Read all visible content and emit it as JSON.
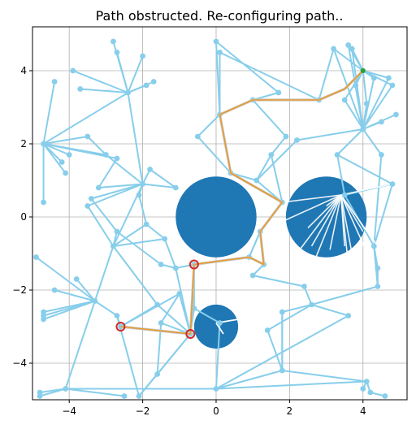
{
  "chart_data": {
    "type": "scatter",
    "title": "Path obstructed. Re-configuring path..",
    "xlabel": "",
    "ylabel": "",
    "xlim": [
      -5,
      5.2
    ],
    "ylim": [
      -5,
      5.2
    ],
    "xticks": [
      -4,
      -2,
      0,
      2,
      4
    ],
    "yticks": [
      -4,
      -2,
      0,
      2,
      4
    ],
    "grid": true,
    "colors": {
      "graph": "#87ceeb",
      "obstacle": "#1f77b4",
      "path": "#e69b2d",
      "path_edge": "#c8c8c8",
      "sample_marker": "#d62728",
      "start": "#2ca02c",
      "rays": "#ffffff"
    },
    "obstacles": [
      {
        "center": [
          0,
          0
        ],
        "radius": 1.1
      },
      {
        "center": [
          3,
          0
        ],
        "radius": 1.1
      },
      {
        "center": [
          0,
          -3
        ],
        "radius": 0.6
      }
    ],
    "nodes": [
      [
        -2.8,
        4.8
      ],
      [
        -2.7,
        4.5
      ],
      [
        -2.0,
        4.4
      ],
      [
        -3.9,
        4.0
      ],
      [
        -4.4,
        3.7
      ],
      [
        -3.7,
        3.5
      ],
      [
        -1.9,
        3.6
      ],
      [
        -1.7,
        3.7
      ],
      [
        -2.4,
        3.4
      ],
      [
        -4.7,
        2.0
      ],
      [
        -3.5,
        2.2
      ],
      [
        -3.0,
        1.7
      ],
      [
        -4.0,
        1.7
      ],
      [
        -2.7,
        1.6
      ],
      [
        -4.2,
        1.5
      ],
      [
        -4.1,
        1.2
      ],
      [
        -4.7,
        0.4
      ],
      [
        -3.2,
        0.8
      ],
      [
        -1.8,
        1.3
      ],
      [
        -2.0,
        0.9
      ],
      [
        -1.1,
        0.8
      ],
      [
        -3.4,
        0.5
      ],
      [
        -3.5,
        0.3
      ],
      [
        -2.1,
        0.6
      ],
      [
        -2.7,
        -0.4
      ],
      [
        -1.9,
        -0.2
      ],
      [
        -1.4,
        -0.6
      ],
      [
        -2.8,
        -0.8
      ],
      [
        -1.5,
        -1.3
      ],
      [
        -3.8,
        -1.7
      ],
      [
        -1.1,
        -1.4
      ],
      [
        -0.6,
        -1.3
      ],
      [
        -4.9,
        -1.1
      ],
      [
        -4.4,
        -2.0
      ],
      [
        -3.3,
        -2.3
      ],
      [
        -1.6,
        -2.4
      ],
      [
        -1.0,
        -2.1
      ],
      [
        -4.7,
        -2.6
      ],
      [
        -4.7,
        -2.7
      ],
      [
        -4.7,
        -2.8
      ],
      [
        -2.7,
        -2.7
      ],
      [
        -2.6,
        -3.0
      ],
      [
        -1.5,
        -2.9
      ],
      [
        -0.7,
        -3.2
      ],
      [
        -1.6,
        -4.3
      ],
      [
        -2.1,
        -4.9
      ],
      [
        -4.8,
        -4.8
      ],
      [
        -4.8,
        -4.9
      ],
      [
        -4.1,
        -4.7
      ],
      [
        -2.5,
        -4.9
      ],
      [
        0.0,
        4.8
      ],
      [
        0.1,
        4.5
      ],
      [
        0.1,
        2.8
      ],
      [
        -0.5,
        2.2
      ],
      [
        1.7,
        3.4
      ],
      [
        1.0,
        3.2
      ],
      [
        1.9,
        2.2
      ],
      [
        1.1,
        1.0
      ],
      [
        0.4,
        1.2
      ],
      [
        1.5,
        1.7
      ],
      [
        2.2,
        2.1
      ],
      [
        2.8,
        3.2
      ],
      [
        3.2,
        4.6
      ],
      [
        3.6,
        4.7
      ],
      [
        3.7,
        4.6
      ],
      [
        4.0,
        4.0
      ],
      [
        4.3,
        3.8
      ],
      [
        4.7,
        3.8
      ],
      [
        4.8,
        3.6
      ],
      [
        4.9,
        2.8
      ],
      [
        4.1,
        3.1
      ],
      [
        3.8,
        3.6
      ],
      [
        3.5,
        3.2
      ],
      [
        4.5,
        2.6
      ],
      [
        4.0,
        2.4
      ],
      [
        3.3,
        1.7
      ],
      [
        4.5,
        1.7
      ],
      [
        3.5,
        0.6
      ],
      [
        4.8,
        0.9
      ],
      [
        1.8,
        0.4
      ],
      [
        1.2,
        -0.4
      ],
      [
        1.3,
        -1.3
      ],
      [
        0.9,
        -1.1
      ],
      [
        1.0,
        -1.6
      ],
      [
        2.4,
        -1.9
      ],
      [
        4.3,
        -0.8
      ],
      [
        4.4,
        -1.4
      ],
      [
        4.4,
        -1.9
      ],
      [
        2.6,
        -2.4
      ],
      [
        1.8,
        -2.6
      ],
      [
        3.6,
        -2.7
      ],
      [
        1.4,
        -3.1
      ],
      [
        1.8,
        -4.2
      ],
      [
        0.0,
        -4.7
      ],
      [
        4.1,
        -4.5
      ],
      [
        4.0,
        -4.7
      ],
      [
        4.2,
        -4.8
      ],
      [
        4.6,
        -4.9
      ],
      [
        0.1,
        -2.9
      ],
      [
        -0.6,
        -2.5
      ]
    ],
    "edges": [
      [
        0,
        8
      ],
      [
        1,
        8
      ],
      [
        2,
        8
      ],
      [
        3,
        8
      ],
      [
        4,
        9
      ],
      [
        5,
        8
      ],
      [
        6,
        8
      ],
      [
        7,
        8
      ],
      [
        8,
        9
      ],
      [
        10,
        9
      ],
      [
        11,
        9
      ],
      [
        12,
        9
      ],
      [
        13,
        9
      ],
      [
        14,
        9
      ],
      [
        15,
        9
      ],
      [
        16,
        9
      ],
      [
        8,
        19
      ],
      [
        11,
        19
      ],
      [
        17,
        19
      ],
      [
        18,
        19
      ],
      [
        20,
        19
      ],
      [
        21,
        19
      ],
      [
        22,
        19
      ],
      [
        23,
        19
      ],
      [
        19,
        27
      ],
      [
        24,
        27
      ],
      [
        25,
        27
      ],
      [
        26,
        27
      ],
      [
        22,
        27
      ],
      [
        27,
        34
      ],
      [
        29,
        34
      ],
      [
        32,
        34
      ],
      [
        33,
        34
      ],
      [
        34,
        40
      ],
      [
        34,
        37
      ],
      [
        34,
        38
      ],
      [
        34,
        39
      ],
      [
        40,
        41
      ],
      [
        41,
        43
      ],
      [
        42,
        43
      ],
      [
        35,
        43
      ],
      [
        36,
        43
      ],
      [
        30,
        43
      ],
      [
        43,
        44
      ],
      [
        43,
        45
      ],
      [
        34,
        48
      ],
      [
        46,
        48
      ],
      [
        47,
        48
      ],
      [
        48,
        93
      ],
      [
        49,
        48
      ],
      [
        31,
        43
      ],
      [
        43,
        99
      ],
      [
        99,
        98
      ],
      [
        98,
        93
      ],
      [
        93,
        92
      ],
      [
        92,
        91
      ],
      [
        92,
        89
      ],
      [
        89,
        88
      ],
      [
        88,
        90
      ],
      [
        88,
        87
      ],
      [
        87,
        86
      ],
      [
        86,
        85
      ],
      [
        88,
        84
      ],
      [
        84,
        83
      ],
      [
        83,
        81
      ],
      [
        81,
        82
      ],
      [
        82,
        80
      ],
      [
        80,
        79
      ],
      [
        79,
        57
      ],
      [
        57,
        58
      ],
      [
        58,
        52
      ],
      [
        52,
        55
      ],
      [
        55,
        61
      ],
      [
        61,
        62
      ],
      [
        62,
        65
      ],
      [
        65,
        66
      ],
      [
        65,
        67
      ],
      [
        65,
        68
      ],
      [
        65,
        63
      ],
      [
        65,
        64
      ],
      [
        65,
        70
      ],
      [
        65,
        71
      ],
      [
        65,
        72
      ],
      [
        62,
        74
      ],
      [
        63,
        74
      ],
      [
        64,
        74
      ],
      [
        66,
        74
      ],
      [
        67,
        74
      ],
      [
        68,
        74
      ],
      [
        69,
        74
      ],
      [
        70,
        74
      ],
      [
        71,
        74
      ],
      [
        72,
        74
      ],
      [
        73,
        74
      ],
      [
        74,
        75
      ],
      [
        74,
        76
      ],
      [
        74,
        60
      ],
      [
        75,
        77
      ],
      [
        76,
        85
      ],
      [
        77,
        78
      ],
      [
        77,
        85
      ],
      [
        55,
        54
      ],
      [
        54,
        50
      ],
      [
        50,
        52
      ],
      [
        51,
        52
      ],
      [
        53,
        52
      ],
      [
        51,
        61
      ],
      [
        55,
        56
      ],
      [
        56,
        59
      ],
      [
        59,
        57
      ],
      [
        53,
        58
      ],
      [
        92,
        94
      ],
      [
        94,
        95
      ],
      [
        94,
        96
      ],
      [
        96,
        97
      ],
      [
        93,
        94
      ],
      [
        89,
        92
      ],
      [
        25,
        26
      ],
      [
        26,
        30
      ],
      [
        28,
        30
      ],
      [
        30,
        31
      ],
      [
        18,
        20
      ],
      [
        24,
        28
      ],
      [
        23,
        25
      ],
      [
        21,
        24
      ],
      [
        10,
        11
      ],
      [
        13,
        17
      ],
      [
        27,
        35
      ],
      [
        35,
        41
      ],
      [
        36,
        42
      ],
      [
        42,
        44
      ],
      [
        41,
        36
      ],
      [
        31,
        99
      ],
      [
        99,
        43
      ],
      [
        45,
        40
      ],
      [
        44,
        45
      ],
      [
        59,
        79
      ],
      [
        60,
        57
      ],
      [
        79,
        80
      ],
      [
        80,
        82
      ],
      [
        82,
        31
      ],
      [
        75,
        78
      ],
      [
        78,
        85
      ],
      [
        85,
        87
      ],
      [
        90,
        93
      ],
      [
        88,
        91
      ]
    ],
    "path": [
      [
        -2.6,
        -3.0
      ],
      [
        -0.7,
        -3.2
      ],
      [
        -0.6,
        -1.3
      ],
      [
        0.9,
        -1.1
      ],
      [
        1.3,
        -1.3
      ],
      [
        1.2,
        -0.4
      ],
      [
        1.8,
        0.4
      ],
      [
        0.4,
        1.2
      ],
      [
        0.1,
        2.8
      ],
      [
        1.0,
        3.2
      ],
      [
        2.8,
        3.2
      ],
      [
        3.5,
        3.5
      ],
      [
        4.0,
        4.0
      ]
    ],
    "start": [
      4.0,
      4.0
    ],
    "sample_markers": [
      [
        -2.6,
        -3.0
      ],
      [
        -0.6,
        -1.3
      ],
      [
        -0.7,
        -3.2
      ]
    ],
    "rays": {
      "origins": [
        [
          3.4,
          0.6
        ],
        [
          0.0,
          -2.9
        ]
      ],
      "targets": [
        [
          1.8,
          0.4
        ],
        [
          1.2,
          -0.4
        ],
        [
          2.2,
          -1.0
        ],
        [
          2.6,
          -0.8
        ],
        [
          3.1,
          -0.9
        ],
        [
          3.5,
          -0.8
        ],
        [
          3.7,
          -1.0
        ],
        [
          3.6,
          -1.3
        ],
        [
          2.4,
          -1.9
        ],
        [
          4.4,
          -0.8
        ],
        [
          4.3,
          -1.4
        ],
        [
          4.8,
          0.9
        ],
        [
          4.0,
          -0.4
        ],
        [
          2.5,
          -0.3
        ],
        [
          3.0,
          0.3
        ]
      ],
      "ray_ends": [
        [
          0.6,
          -2.8
        ],
        [
          0.2,
          -3.2
        ]
      ]
    }
  }
}
